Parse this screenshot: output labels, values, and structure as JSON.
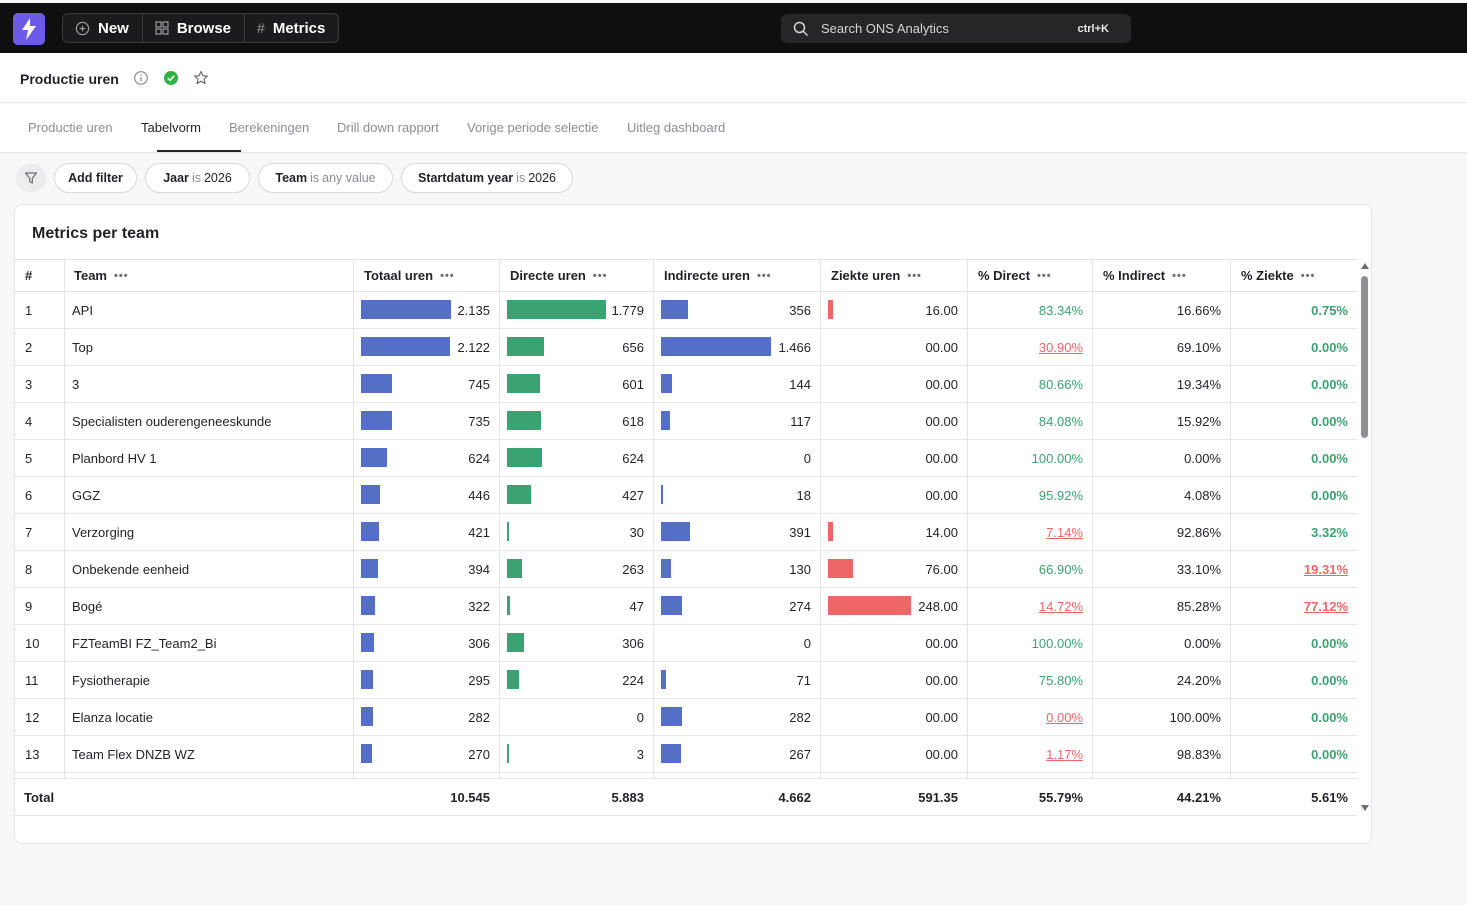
{
  "topbar": {
    "new_label": "New",
    "browse_label": "Browse",
    "metrics_label": "Metrics",
    "search_placeholder": "Search ONS Analytics",
    "search_shortcut": "ctrl+K"
  },
  "header": {
    "title": "Productie uren"
  },
  "tabs": [
    {
      "label": "Productie uren"
    },
    {
      "label": "Tabelvorm"
    },
    {
      "label": "Berekeningen"
    },
    {
      "label": "Drill down rapport"
    },
    {
      "label": "Vorige periode selectie"
    },
    {
      "label": "Uitleg dashboard"
    }
  ],
  "active_tab": "Tabelvorm",
  "filters": {
    "add_label": "Add filter",
    "chips": [
      {
        "field": "Jaar",
        "op": "is",
        "value": "2026"
      },
      {
        "field": "Team",
        "op": "is",
        "value": "any value"
      },
      {
        "field": "Startdatum year",
        "op": "is",
        "value": "2026"
      }
    ]
  },
  "card": {
    "title": "Metrics per team"
  },
  "columns": [
    "#",
    "Team",
    "Totaal uren",
    "Directe uren",
    "Indirecte uren",
    "Ziekte uren",
    "% Direct",
    "% Indirect",
    "% Ziekte"
  ],
  "rows": [
    {
      "n": "1",
      "team": "API",
      "totaal": "2.135",
      "direct": "1.779",
      "indirect": "356",
      "ziekte": "16.00",
      "pdirect": "83.34%",
      "pindirect": "16.66%",
      "pziekte": "0.75%"
    },
    {
      "n": "2",
      "team": "Top",
      "totaal": "2.122",
      "direct": "656",
      "indirect": "1.466",
      "ziekte": "00.00",
      "pdirect": "30.90%",
      "pindirect": "69.10%",
      "pziekte": "0.00%"
    },
    {
      "n": "3",
      "team": "3",
      "totaal": "745",
      "direct": "601",
      "indirect": "144",
      "ziekte": "00.00",
      "pdirect": "80.66%",
      "pindirect": "19.34%",
      "pziekte": "0.00%"
    },
    {
      "n": "4",
      "team": "Specialisten ouderengeneeskunde",
      "totaal": "735",
      "direct": "618",
      "indirect": "117",
      "ziekte": "00.00",
      "pdirect": "84.08%",
      "pindirect": "15.92%",
      "pziekte": "0.00%"
    },
    {
      "n": "5",
      "team": "Planbord HV 1",
      "totaal": "624",
      "direct": "624",
      "indirect": "0",
      "ziekte": "00.00",
      "pdirect": "100.00%",
      "pindirect": "0.00%",
      "pziekte": "0.00%"
    },
    {
      "n": "6",
      "team": "GGZ",
      "totaal": "446",
      "direct": "427",
      "indirect": "18",
      "ziekte": "00.00",
      "pdirect": "95.92%",
      "pindirect": "4.08%",
      "pziekte": "0.00%"
    },
    {
      "n": "7",
      "team": "Verzorging",
      "totaal": "421",
      "direct": "30",
      "indirect": "391",
      "ziekte": "14.00",
      "pdirect": "7.14%",
      "pindirect": "92.86%",
      "pziekte": "3.32%"
    },
    {
      "n": "8",
      "team": "Onbekende eenheid",
      "totaal": "394",
      "direct": "263",
      "indirect": "130",
      "ziekte": "76.00",
      "pdirect": "66.90%",
      "pindirect": "33.10%",
      "pziekte": "19.31%"
    },
    {
      "n": "9",
      "team": "Bogé",
      "totaal": "322",
      "direct": "47",
      "indirect": "274",
      "ziekte": "248.00",
      "pdirect": "14.72%",
      "pindirect": "85.28%",
      "pziekte": "77.12%"
    },
    {
      "n": "10",
      "team": "FZTeamBI FZ_Team2_Bi",
      "totaal": "306",
      "direct": "306",
      "indirect": "0",
      "ziekte": "00.00",
      "pdirect": "100.00%",
      "pindirect": "0.00%",
      "pziekte": "0.00%"
    },
    {
      "n": "11",
      "team": "Fysiotherapie",
      "totaal": "295",
      "direct": "224",
      "indirect": "71",
      "ziekte": "00.00",
      "pdirect": "75.80%",
      "pindirect": "24.20%",
      "pziekte": "0.00%"
    },
    {
      "n": "12",
      "team": "Elanza locatie",
      "totaal": "282",
      "direct": "0",
      "indirect": "282",
      "ziekte": "00.00",
      "pdirect": "0.00%",
      "pindirect": "100.00%",
      "pziekte": "0.00%"
    },
    {
      "n": "13",
      "team": "Team Flex DNZB WZ",
      "totaal": "270",
      "direct": "3",
      "indirect": "267",
      "ziekte": "00.00",
      "pdirect": "1.17%",
      "pindirect": "98.83%",
      "pziekte": "0.00%"
    }
  ],
  "total": {
    "label": "Total",
    "totaal": "10.545",
    "direct": "5.883",
    "indirect": "4.662",
    "ziekte": "591.35",
    "pdirect": "55.79%",
    "pindirect": "44.21%",
    "pziekte": "5.61%"
  },
  "colors": {
    "blue_bar": "#5470c6",
    "green_bar": "#3ba272",
    "red_bar": "#ee6666",
    "logo": "#6d5be8"
  }
}
